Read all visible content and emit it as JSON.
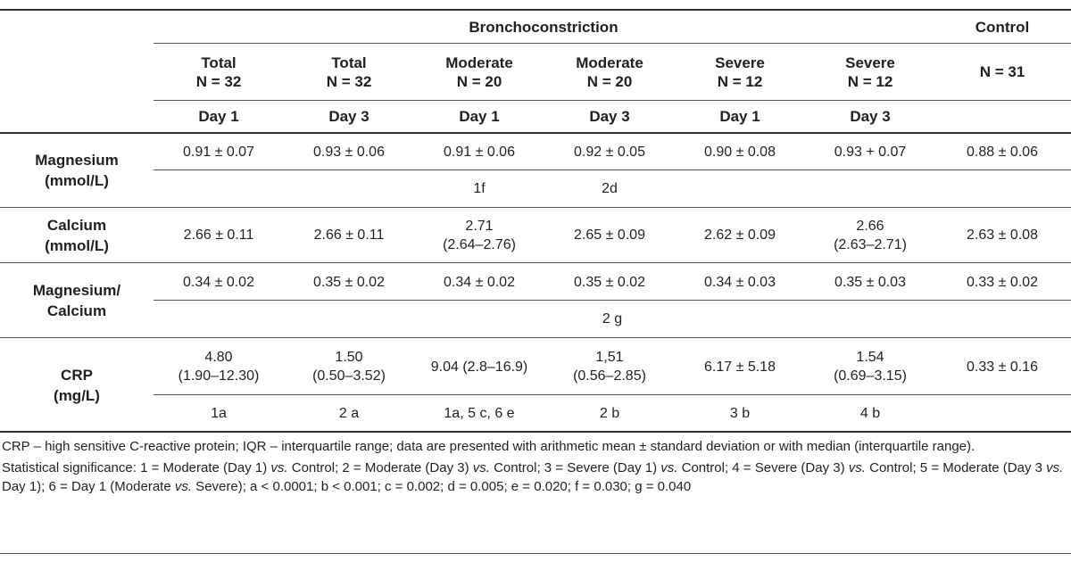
{
  "header": {
    "group_bronchoconstriction": "Bronchoconstriction",
    "group_control": "Control",
    "columns": [
      {
        "name": "Total",
        "n": "N = 32",
        "day": "Day 1"
      },
      {
        "name": "Total",
        "n": "N = 32",
        "day": "Day 3"
      },
      {
        "name": "Moderate",
        "n": "N = 20",
        "day": "Day 1"
      },
      {
        "name": "Moderate",
        "n": "N = 20",
        "day": "Day 3"
      },
      {
        "name": "Severe",
        "n": "N = 12",
        "day": "Day 1"
      },
      {
        "name": "Severe",
        "n": "N = 12",
        "day": "Day 3"
      }
    ],
    "control_n": "N = 31"
  },
  "rows": {
    "magnesium": {
      "label_line1": "Magnesium",
      "label_line2": "(mmol/L)",
      "values": [
        "0.91 ± 0.07",
        "0.93 ± 0.06",
        "0.91 ± 0.06",
        "0.92 ± 0.05",
        "0.90 ± 0.08",
        "0.93 + 0.07",
        "0.88 ± 0.06"
      ],
      "significance": [
        "",
        "",
        "1f",
        "2d",
        "",
        "",
        ""
      ]
    },
    "calcium": {
      "label_line1": "Calcium",
      "label_line2": "(mmol/L)",
      "values": [
        {
          "line1": "2.66 ± 0.11",
          "line2": ""
        },
        {
          "line1": "2.66 ± 0.11",
          "line2": ""
        },
        {
          "line1": "2.71",
          "line2": "(2.64–2.76)"
        },
        {
          "line1": "2.65 ± 0.09",
          "line2": ""
        },
        {
          "line1": "2.62 ± 0.09",
          "line2": ""
        },
        {
          "line1": "2.66",
          "line2": "(2.63–2.71)"
        },
        {
          "line1": "2.63 ± 0.08",
          "line2": ""
        }
      ]
    },
    "mg_ca": {
      "label_line1": "Magnesium/",
      "label_line2": "Calcium",
      "values": [
        "0.34 ± 0.02",
        "0.35 ± 0.02",
        "0.34 ± 0.02",
        "0.35 ± 0.02",
        "0.34 ± 0.03",
        "0.35 ± 0.03",
        "0.33 ± 0.02"
      ],
      "significance_spanned": "2 g"
    },
    "crp": {
      "label_line1": "CRP",
      "label_line2": "(mg/L)",
      "values": [
        {
          "line1": "4.80",
          "line2": "(1.90–12.30)"
        },
        {
          "line1": "1.50",
          "line2": "(0.50–3.52)"
        },
        {
          "line1": "9.04 (2.8–16.9)",
          "line2": ""
        },
        {
          "line1": "1,51",
          "line2": "(0.56–2.85)"
        },
        {
          "line1": "6.17 ± 5.18",
          "line2": ""
        },
        {
          "line1": "1.54",
          "line2": "(0.69–3.15)"
        },
        {
          "line1": "0.33 ± 0.16",
          "line2": ""
        }
      ],
      "significance": [
        "1a",
        "2 a",
        "1a, 5 c, 6 e",
        "2 b",
        "3 b",
        "4 b",
        ""
      ]
    }
  },
  "footnotes": {
    "line1": "CRP – high sensitive C-reactive protein; IQR – interquartile range; data are presented with arithmetic mean ± standard deviation or with median (interquartile range).",
    "line2": "Statistical significance: 1 = Moderate (Day 1) vs. Control; 2 = Moderate (Day 3) vs. Control; 3 = Severe (Day 1) vs. Control; 4 = Severe (Day 3) vs. Control; 5 = Moderate (Day 3 vs. Day 1); 6 = Day 1 (Moderate vs. Severe); a < 0.0001; b < 0.001; c = 0.002; d = 0.005; e = 0.020; f = 0.030; g = 0.040"
  }
}
